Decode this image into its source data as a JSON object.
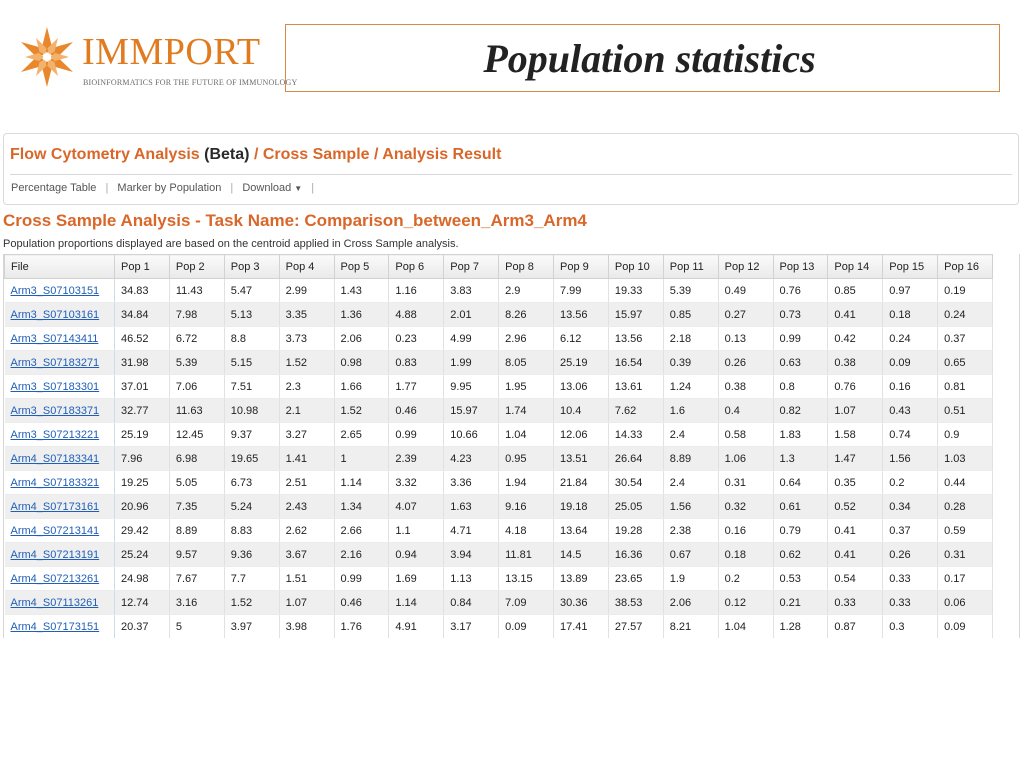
{
  "slide": {
    "logo_name": "IMMPORT",
    "logo_tagline": "Bioinformatics For The Future of Immunology",
    "title": "Population statistics"
  },
  "breadcrumb": {
    "part1": "Flow Cytometry Analysis",
    "part2": "(Beta)",
    "part3": "/ Cross Sample / Analysis Result"
  },
  "toolbar": {
    "percentage_table": "Percentage Table",
    "marker_by_population": "Marker by Population",
    "download": "Download",
    "separator": "|"
  },
  "task_title": "Cross Sample Analysis - Task Name: Comparison_between_Arm3_Arm4",
  "note": "Population proportions displayed are based on the centroid applied in Cross Sample analysis.",
  "colors": {
    "accent_orange": "#d9672a",
    "link_blue": "#1f5fb8",
    "border_orange": "#d78a45"
  },
  "icons": {
    "logo": "immport-star-logo-icon",
    "download_caret": "caret-down-icon"
  },
  "table": {
    "headers": [
      "File",
      "Pop 1",
      "Pop 2",
      "Pop 3",
      "Pop 4",
      "Pop 5",
      "Pop 6",
      "Pop 7",
      "Pop 8",
      "Pop 9",
      "Pop 10",
      "Pop 11",
      "Pop 12",
      "Pop 13",
      "Pop 14",
      "Pop 15",
      "Pop 16"
    ],
    "rows": [
      [
        "Arm3_S07103151",
        "34.83",
        "11.43",
        "5.47",
        "2.99",
        "1.43",
        "1.16",
        "3.83",
        "2.9",
        "7.99",
        "19.33",
        "5.39",
        "0.49",
        "0.76",
        "0.85",
        "0.97",
        "0.19"
      ],
      [
        "Arm3_S07103161",
        "34.84",
        "7.98",
        "5.13",
        "3.35",
        "1.36",
        "4.88",
        "2.01",
        "8.26",
        "13.56",
        "15.97",
        "0.85",
        "0.27",
        "0.73",
        "0.41",
        "0.18",
        "0.24"
      ],
      [
        "Arm3_S07143411",
        "46.52",
        "6.72",
        "8.8",
        "3.73",
        "2.06",
        "0.23",
        "4.99",
        "2.96",
        "6.12",
        "13.56",
        "2.18",
        "0.13",
        "0.99",
        "0.42",
        "0.24",
        "0.37"
      ],
      [
        "Arm3_S07183271",
        "31.98",
        "5.39",
        "5.15",
        "1.52",
        "0.98",
        "0.83",
        "1.99",
        "8.05",
        "25.19",
        "16.54",
        "0.39",
        "0.26",
        "0.63",
        "0.38",
        "0.09",
        "0.65"
      ],
      [
        "Arm3_S07183301",
        "37.01",
        "7.06",
        "7.51",
        "2.3",
        "1.66",
        "1.77",
        "9.95",
        "1.95",
        "13.06",
        "13.61",
        "1.24",
        "0.38",
        "0.8",
        "0.76",
        "0.16",
        "0.81"
      ],
      [
        "Arm3_S07183371",
        "32.77",
        "11.63",
        "10.98",
        "2.1",
        "1.52",
        "0.46",
        "15.97",
        "1.74",
        "10.4",
        "7.62",
        "1.6",
        "0.4",
        "0.82",
        "1.07",
        "0.43",
        "0.51"
      ],
      [
        "Arm3_S07213221",
        "25.19",
        "12.45",
        "9.37",
        "3.27",
        "2.65",
        "0.99",
        "10.66",
        "1.04",
        "12.06",
        "14.33",
        "2.4",
        "0.58",
        "1.83",
        "1.58",
        "0.74",
        "0.9"
      ],
      [
        "Arm4_S07183341",
        "7.96",
        "6.98",
        "19.65",
        "1.41",
        "1",
        "2.39",
        "4.23",
        "0.95",
        "13.51",
        "26.64",
        "8.89",
        "1.06",
        "1.3",
        "1.47",
        "1.56",
        "1.03"
      ],
      [
        "Arm4_S07183321",
        "19.25",
        "5.05",
        "6.73",
        "2.51",
        "1.14",
        "3.32",
        "3.36",
        "1.94",
        "21.84",
        "30.54",
        "2.4",
        "0.31",
        "0.64",
        "0.35",
        "0.2",
        "0.44"
      ],
      [
        "Arm4_S07173161",
        "20.96",
        "7.35",
        "5.24",
        "2.43",
        "1.34",
        "4.07",
        "1.63",
        "9.16",
        "19.18",
        "25.05",
        "1.56",
        "0.32",
        "0.61",
        "0.52",
        "0.34",
        "0.28"
      ],
      [
        "Arm4_S07213141",
        "29.42",
        "8.89",
        "8.83",
        "2.62",
        "2.66",
        "1.1",
        "4.71",
        "4.18",
        "13.64",
        "19.28",
        "2.38",
        "0.16",
        "0.79",
        "0.41",
        "0.37",
        "0.59"
      ],
      [
        "Arm4_S07213191",
        "25.24",
        "9.57",
        "9.36",
        "3.67",
        "2.16",
        "0.94",
        "3.94",
        "11.81",
        "14.5",
        "16.36",
        "0.67",
        "0.18",
        "0.62",
        "0.41",
        "0.26",
        "0.31"
      ],
      [
        "Arm4_S07213261",
        "24.98",
        "7.67",
        "7.7",
        "1.51",
        "0.99",
        "1.69",
        "1.13",
        "13.15",
        "13.89",
        "23.65",
        "1.9",
        "0.2",
        "0.53",
        "0.54",
        "0.33",
        "0.17"
      ],
      [
        "Arm4_S07113261",
        "12.74",
        "3.16",
        "1.52",
        "1.07",
        "0.46",
        "1.14",
        "0.84",
        "7.09",
        "30.36",
        "38.53",
        "2.06",
        "0.12",
        "0.21",
        "0.33",
        "0.33",
        "0.06"
      ],
      [
        "Arm4_S07173151",
        "20.37",
        "5",
        "3.97",
        "3.98",
        "1.76",
        "4.91",
        "3.17",
        "0.09",
        "17.41",
        "27.57",
        "8.21",
        "1.04",
        "1.28",
        "0.87",
        "0.3",
        "0.09"
      ]
    ]
  }
}
